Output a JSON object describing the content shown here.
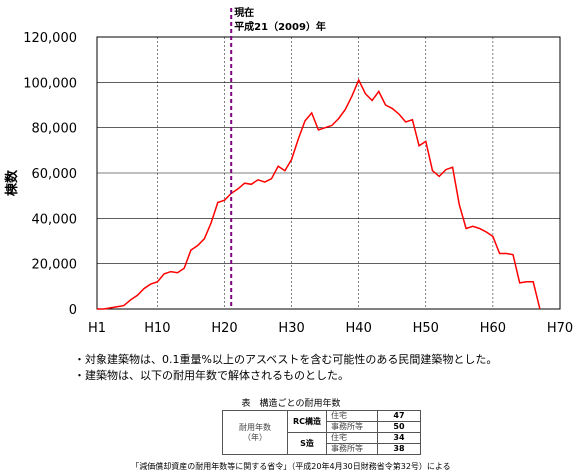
{
  "chart_data": {
    "type": "line",
    "ylabel": "棟数",
    "xlabel": "",
    "x_ticks": [
      "H1",
      "H10",
      "H20",
      "H30",
      "H40",
      "H50",
      "H60",
      "H70"
    ],
    "x_tick_values": [
      1,
      10,
      20,
      30,
      40,
      50,
      60,
      70
    ],
    "xlim": [
      1,
      70
    ],
    "y_ticks": [
      "0",
      "20,000",
      "40,000",
      "60,000",
      "80,000",
      "100,000",
      "120,000"
    ],
    "ylim": [
      0,
      120000
    ],
    "grid": true,
    "series": [
      {
        "color": "#ff0000",
        "x": [
          1,
          2,
          3,
          4,
          5,
          6,
          7,
          8,
          9,
          10,
          11,
          12,
          13,
          14,
          15,
          16,
          17,
          18,
          19,
          20,
          21,
          22,
          23,
          24,
          25,
          26,
          27,
          28,
          29,
          30,
          31,
          32,
          33,
          34,
          35,
          36,
          37,
          38,
          39,
          40,
          41,
          42,
          43,
          44,
          45,
          46,
          47,
          48,
          49,
          50,
          51,
          52,
          53,
          54,
          55,
          56,
          57,
          58,
          59,
          60,
          61,
          62,
          63,
          64,
          65,
          66,
          67
        ],
        "values": [
          0,
          0,
          500,
          1000,
          1500,
          4000,
          6000,
          9000,
          11000,
          12000,
          15500,
          16500,
          16000,
          18000,
          26000,
          28000,
          31000,
          38000,
          47000,
          48000,
          51000,
          53000,
          55500,
          55000,
          57000,
          56000,
          57500,
          63000,
          61000,
          66000,
          75000,
          83000,
          86500,
          79000,
          80000,
          81000,
          84000,
          88000,
          94000,
          101000,
          95000,
          92000,
          96000,
          90000,
          88500,
          86000,
          82500,
          83500,
          72000,
          74000,
          61000,
          58500,
          61500,
          62500,
          46000,
          35500,
          36500,
          35500,
          34000,
          32000,
          24500,
          24500,
          24000,
          11500,
          12000,
          12000,
          0
        ]
      }
    ],
    "annotations": [
      {
        "label_line1": "現在",
        "label_line2": "平成21（2009）年",
        "x": 21,
        "color": "#800080",
        "style": "dashed"
      }
    ]
  },
  "notes": [
    "・対象建築物は、0.1重量%以上のアスベストを含む可能性のある民間建築物とした。",
    "・建築物は、以下の耐用年数で解体されるものとした。"
  ],
  "table": {
    "title": "表　構造ごとの耐用年数",
    "left_header": "耐用年数",
    "left_header2": "（年）",
    "rc_label": "RC構造",
    "s_label": "S造",
    "use_residential": "住宅",
    "use_office": "事務所等",
    "rc_residential": "47",
    "rc_office": "50",
    "s_residential": "34",
    "s_office": "38"
  },
  "source": "「減価償却資産の耐用年数等に関する省令」（平成20年4月30日財務省令第32号）による"
}
